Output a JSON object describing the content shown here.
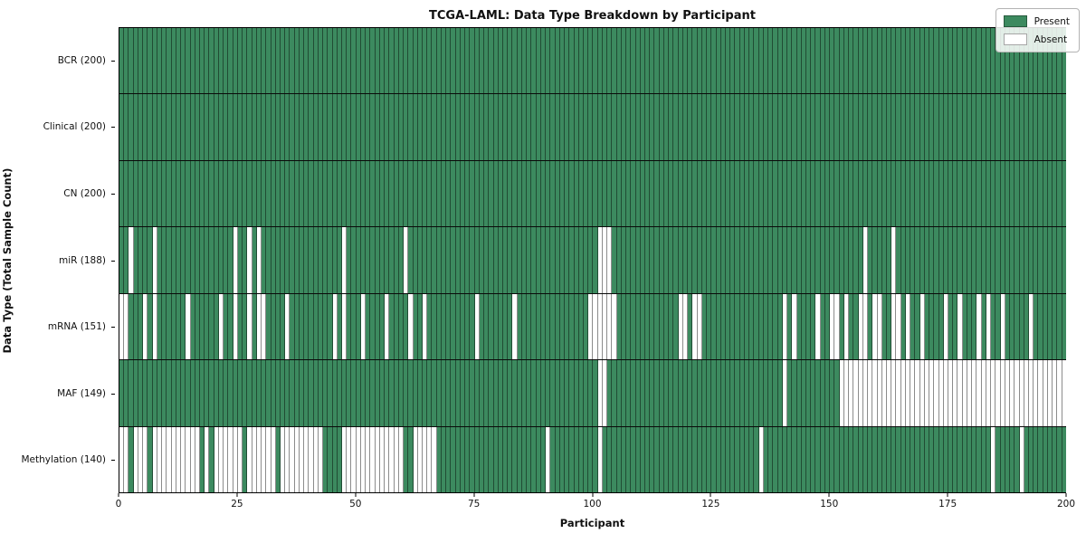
{
  "title": "TCGA-LAML: Data Type Breakdown by Participant",
  "axes": {
    "x_label": "Participant",
    "y_label": "Data Type (Total Sample Count)"
  },
  "legend": {
    "present_label": "Present",
    "absent_label": "Absent"
  },
  "colors": {
    "present": "#3c8a5f",
    "absent": "#ffffff",
    "cell_border": "rgba(0,0,0,0.45)",
    "frame": "#000000"
  },
  "chart_data": {
    "type": "heatmap",
    "title": "TCGA-LAML: Data Type Breakdown by Participant",
    "xlabel": "Participant",
    "ylabel": "Data Type (Total Sample Count)",
    "x_ticks": [
      0,
      25,
      50,
      75,
      100,
      125,
      150,
      175,
      200
    ],
    "x_range": [
      0,
      200
    ],
    "n_participants": 200,
    "legend_entries": [
      "Present",
      "Absent"
    ],
    "legend_position": "upper right",
    "grid": false,
    "rows": [
      {
        "label": "BCR (200)",
        "name": "BCR",
        "present_count": 200,
        "absent_participants": []
      },
      {
        "label": "Clinical (200)",
        "name": "Clinical",
        "present_count": 200,
        "absent_participants": []
      },
      {
        "label": "CN (200)",
        "name": "CN",
        "present_count": 200,
        "absent_participants": []
      },
      {
        "label": "miR (188)",
        "name": "miR",
        "present_count": 188,
        "absent_participants": [
          2,
          7,
          24,
          27,
          29,
          47,
          60,
          101,
          102,
          103,
          157,
          163
        ]
      },
      {
        "label": "mRNA (151)",
        "name": "mRNA",
        "present_count": 151,
        "absent_participants": [
          0,
          1,
          5,
          7,
          14,
          21,
          24,
          27,
          29,
          30,
          35,
          45,
          47,
          51,
          56,
          61,
          64,
          75,
          83,
          99,
          100,
          101,
          102,
          103,
          104,
          118,
          119,
          121,
          122,
          140,
          142,
          147,
          150,
          151,
          153,
          156,
          157,
          159,
          160,
          163,
          164,
          166,
          169,
          174,
          177,
          181,
          183,
          186,
          192
        ]
      },
      {
        "label": "MAF (149)",
        "name": "MAF",
        "present_count": 149,
        "absent_participants": [
          101,
          102,
          140,
          152,
          153,
          154,
          155,
          156,
          157,
          158,
          159,
          160,
          161,
          162,
          163,
          164,
          165,
          166,
          167,
          168,
          169,
          170,
          171,
          172,
          173,
          174,
          175,
          176,
          177,
          178,
          179,
          180,
          181,
          182,
          183,
          184,
          185,
          186,
          187,
          188,
          189,
          190,
          191,
          192,
          193,
          194,
          195,
          196,
          197,
          198,
          199
        ]
      },
      {
        "label": "Methylation (140)",
        "name": "Methylation",
        "present_count": 140,
        "absent_participants": [
          0,
          1,
          3,
          4,
          5,
          7,
          8,
          9,
          10,
          11,
          12,
          13,
          14,
          15,
          16,
          18,
          20,
          21,
          22,
          23,
          24,
          25,
          27,
          28,
          29,
          30,
          31,
          32,
          34,
          35,
          36,
          37,
          38,
          39,
          40,
          41,
          42,
          47,
          48,
          49,
          50,
          51,
          52,
          53,
          54,
          55,
          56,
          57,
          58,
          59,
          62,
          63,
          64,
          65,
          66,
          90,
          101,
          135,
          184,
          190
        ]
      }
    ]
  }
}
